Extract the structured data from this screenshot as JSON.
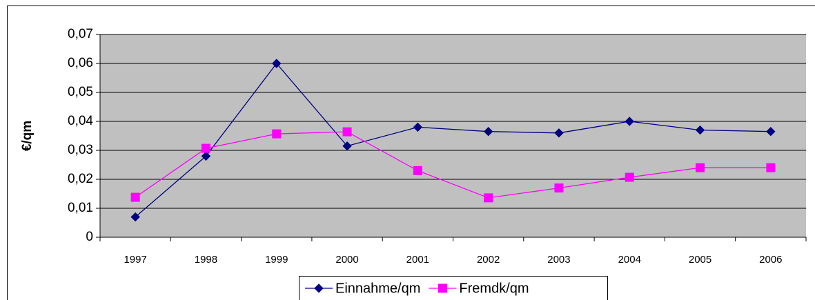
{
  "chart_data": {
    "type": "line",
    "y_label": "€/qm",
    "categories": [
      "1997",
      "1998",
      "1999",
      "2000",
      "2001",
      "2002",
      "2003",
      "2004",
      "2005",
      "2006"
    ],
    "series": [
      {
        "name": "Einnahme/qm",
        "color": "#000080",
        "marker": "diamond",
        "values": [
          0.007,
          0.028,
          0.06,
          0.0315,
          0.038,
          0.0365,
          0.036,
          0.04,
          0.037,
          0.0365
        ]
      },
      {
        "name": "Fremdk/qm",
        "color": "#ff00ff",
        "marker": "square",
        "values": [
          0.0138,
          0.0307,
          0.0357,
          0.0364,
          0.023,
          0.0136,
          0.017,
          0.0207,
          0.024,
          0.024
        ]
      }
    ],
    "ylim": [
      0,
      0.07
    ],
    "yticks": [
      0,
      {
        "value": 0.01,
        "label": "0,01"
      },
      {
        "value": 0.02,
        "label": "0,02"
      },
      {
        "value": 0.03,
        "label": "0,03"
      },
      {
        "value": 0.04,
        "label": "0,04"
      },
      {
        "value": 0.05,
        "label": "0,05"
      },
      {
        "value": 0.06,
        "label": "0,06"
      },
      {
        "value": 0.07,
        "label": "0,07"
      }
    ],
    "grid": true,
    "legend": "bottom",
    "plot_background": "#c0c0c0"
  }
}
